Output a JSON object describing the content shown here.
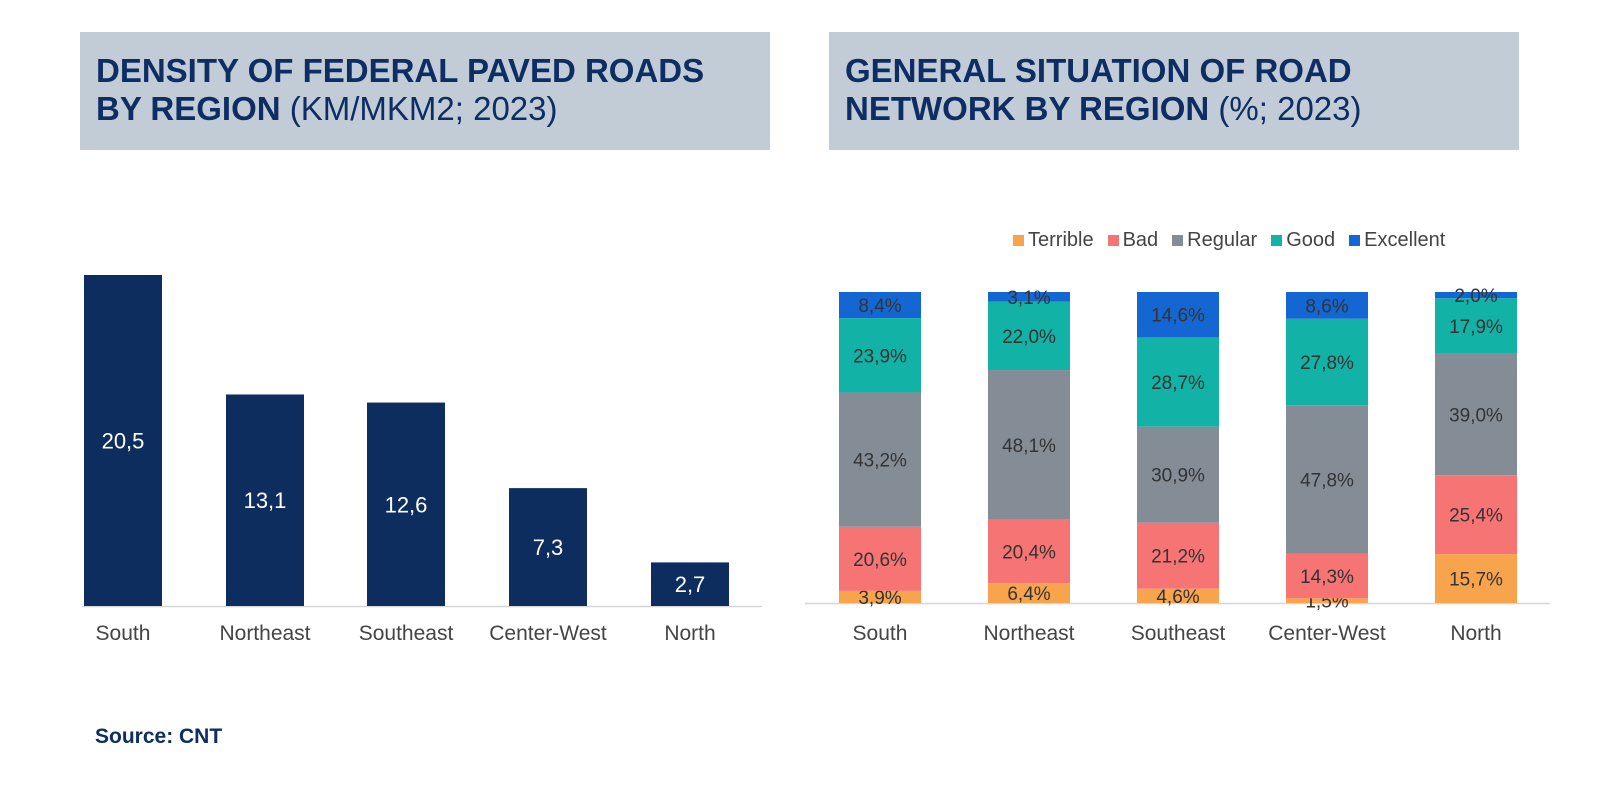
{
  "left_title": {
    "bold": "DENSITY OF FEDERAL PAVED ROADS BY REGION",
    "light": "(KM/MKM2; 2023)"
  },
  "right_title": {
    "bold": "GENERAL SITUATION OF ROAD NETWORK BY REGION",
    "light": "(%; 2023)"
  },
  "source": "Source: CNT",
  "colors": {
    "bar": "#0d2d5e",
    "Terrible": "#f8a44c",
    "Bad": "#f67474",
    "Regular": "#848d96",
    "Good": "#12b2a6",
    "Excellent": "#1467d2"
  },
  "chart_data": [
    {
      "type": "bar",
      "categories": [
        "South",
        "Northeast",
        "Southeast",
        "Center-West",
        "North"
      ],
      "values": [
        20.5,
        13.1,
        12.6,
        7.3,
        2.7
      ],
      "value_labels": [
        "20,5",
        "13,1",
        "12,6",
        "7,3",
        "2,7"
      ],
      "ylim": [
        0,
        20.5
      ],
      "grid": false,
      "legend": "none"
    },
    {
      "type": "bar",
      "stacked": true,
      "categories": [
        "South",
        "Northeast",
        "Southeast",
        "Center-West",
        "North"
      ],
      "series": [
        {
          "name": "Terrible",
          "values": [
            3.9,
            6.4,
            4.6,
            1.5,
            15.7
          ],
          "labels": [
            "3,9%",
            "6,4%",
            "4,6%",
            "1,5%",
            "15,7%"
          ]
        },
        {
          "name": "Bad",
          "values": [
            20.6,
            20.4,
            21.2,
            14.3,
            25.4
          ],
          "labels": [
            "20,6%",
            "20,4%",
            "21,2%",
            "14,3%",
            "25,4%"
          ]
        },
        {
          "name": "Regular",
          "values": [
            43.2,
            48.1,
            30.9,
            47.8,
            39.0
          ],
          "labels": [
            "43,2%",
            "48,1%",
            "30,9%",
            "47,8%",
            "39,0%"
          ]
        },
        {
          "name": "Good",
          "values": [
            23.9,
            22.0,
            28.7,
            27.8,
            17.9
          ],
          "labels": [
            "23,9%",
            "22,0%",
            "28,7%",
            "27,8%",
            "17,9%"
          ]
        },
        {
          "name": "Excellent",
          "values": [
            8.4,
            3.1,
            14.6,
            8.6,
            2.0
          ],
          "labels": [
            "8,4%",
            "3,1%",
            "14,6%",
            "8,6%",
            "2,0%"
          ]
        }
      ],
      "ylim": [
        0,
        100
      ],
      "grid": false,
      "legend": "top-right"
    }
  ]
}
